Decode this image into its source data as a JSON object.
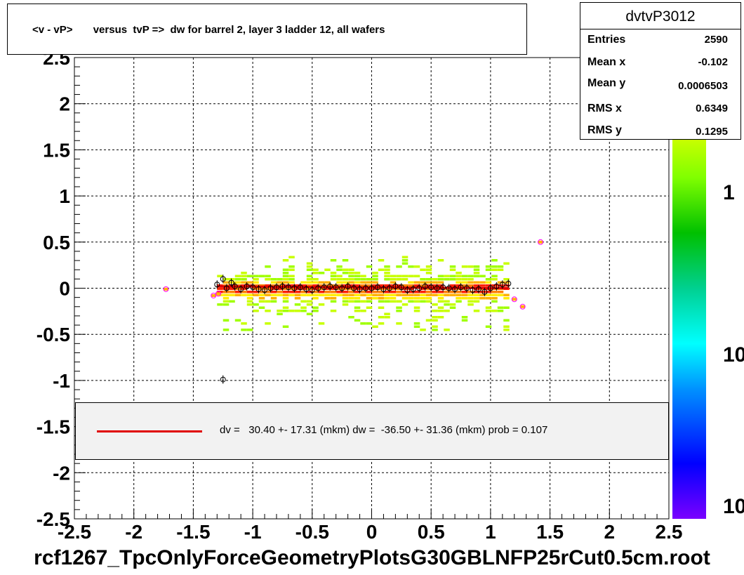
{
  "title": "<v - vP>       versus  tvP =>  dw for barrel 2, layer 3 ladder 12, all wafers",
  "stats": {
    "name": "dvtvP3012",
    "rows": [
      {
        "label": "Entries",
        "value": "2590"
      },
      {
        "label": "Mean x",
        "value": "-0.102"
      },
      {
        "label": "Mean y",
        "value": "0.0006503"
      },
      {
        "label": "RMS x",
        "value": "0.6349"
      },
      {
        "label": "RMS y",
        "value": "0.1295"
      }
    ]
  },
  "fit_label": "dv =   30.40 +- 17.31 (mkm) dw =  -36.50 +- 31.36 (mkm) prob = 0.107",
  "footer": "rcf1267_TpcOnlyForceGeometryPlotsG30GBLNFP25rCut0.5cm.root",
  "colors": {
    "fit_line": "#e00000",
    "profile_marker": "#000000",
    "outlier_marker": "#ff00ff"
  },
  "chart_data": {
    "type": "heatmap",
    "xlim": [
      -2.5,
      2.5
    ],
    "ylim": [
      -2.5,
      2.5
    ],
    "x_ticks": [
      "-2.5",
      "-2",
      "-1.5",
      "-1",
      "-0.5",
      "0",
      "0.5",
      "1",
      "1.5",
      "2",
      "2.5"
    ],
    "y_ticks": [
      "-2.5",
      "-2",
      "-1.5",
      "-1",
      "-0.5",
      "0",
      "0.5",
      "1",
      "1.5",
      "2",
      "2.5"
    ],
    "grid": true,
    "log_z": true,
    "z_ticks": [
      "1",
      "10",
      "10"
    ],
    "band": {
      "x_min": -1.3,
      "x_max": 1.15,
      "y_core": 0.08,
      "y_spread": 0.35
    },
    "fit": {
      "x_start": -1.3,
      "x_end": 1.15,
      "y_start": 0.02,
      "y_end": 0.0
    },
    "profile_points": [
      [
        -1.3,
        0.04
      ],
      [
        -1.25,
        0.1
      ],
      [
        -1.22,
        0.0
      ],
      [
        -1.18,
        0.06
      ],
      [
        -1.15,
        0.02
      ],
      [
        -1.1,
        -0.01
      ],
      [
        -1.05,
        0.02
      ],
      [
        -1.0,
        0.01
      ],
      [
        -0.95,
        -0.01
      ],
      [
        -0.9,
        -0.02
      ],
      [
        -0.85,
        0.0
      ],
      [
        -0.8,
        0.01
      ],
      [
        -0.75,
        0.02
      ],
      [
        -0.7,
        0.01
      ],
      [
        -0.65,
        0.0
      ],
      [
        -0.6,
        0.01
      ],
      [
        -0.55,
        -0.01
      ],
      [
        -0.5,
        -0.02
      ],
      [
        -0.45,
        0.0
      ],
      [
        -0.4,
        0.01
      ],
      [
        -0.35,
        0.02
      ],
      [
        -0.3,
        0.01
      ],
      [
        -0.25,
        0.0
      ],
      [
        -0.2,
        0.02
      ],
      [
        -0.15,
        0.0
      ],
      [
        -0.1,
        -0.01
      ],
      [
        -0.05,
        0.0
      ],
      [
        0.0,
        0.0
      ],
      [
        0.05,
        0.01
      ],
      [
        0.1,
        -0.01
      ],
      [
        0.15,
        0.0
      ],
      [
        0.2,
        0.02
      ],
      [
        0.25,
        0.01
      ],
      [
        0.3,
        -0.02
      ],
      [
        0.35,
        -0.01
      ],
      [
        0.4,
        0.0
      ],
      [
        0.45,
        0.02
      ],
      [
        0.5,
        0.01
      ],
      [
        0.55,
        0.0
      ],
      [
        0.6,
        0.01
      ],
      [
        0.65,
        0.0
      ],
      [
        0.7,
        -0.01
      ],
      [
        0.75,
        0.01
      ],
      [
        0.8,
        0.0
      ],
      [
        0.85,
        -0.02
      ],
      [
        0.9,
        -0.01
      ],
      [
        0.95,
        -0.04
      ],
      [
        1.0,
        0.0
      ],
      [
        1.05,
        0.02
      ],
      [
        1.1,
        0.04
      ],
      [
        1.15,
        0.05
      ],
      [
        -1.25,
        -0.99
      ]
    ],
    "outlier_points": [
      [
        -1.73,
        -0.01
      ],
      [
        -1.33,
        -0.08
      ],
      [
        -1.29,
        -0.06
      ],
      [
        1.42,
        0.5
      ],
      [
        1.2,
        -0.12
      ],
      [
        1.27,
        -0.2
      ]
    ]
  }
}
